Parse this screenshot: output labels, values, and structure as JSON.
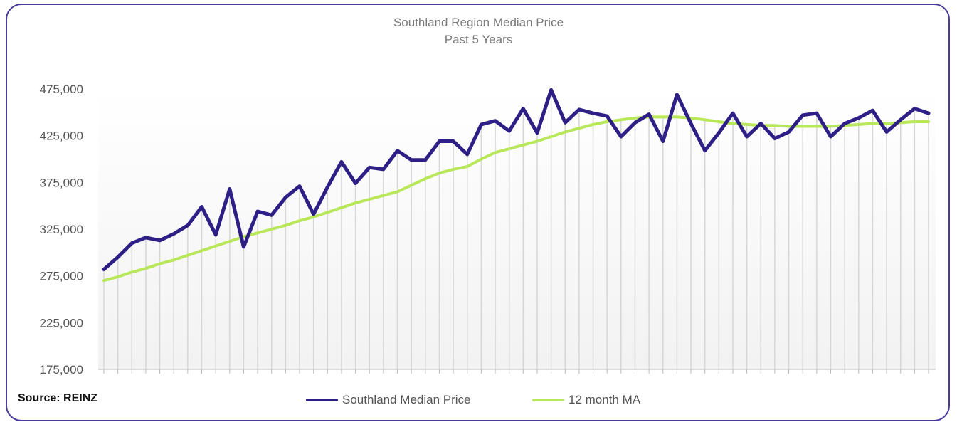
{
  "chart_data": {
    "type": "line",
    "title": "Southland Region Median Price",
    "subtitle": "Past 5 Years",
    "xlabel": "",
    "ylabel": "",
    "ylim": [
      175000,
      475000
    ],
    "yticks": [
      175000,
      225000,
      275000,
      325000,
      375000,
      425000,
      475000
    ],
    "ytick_labels": [
      "175,000",
      "225,000",
      "275,000",
      "325,000",
      "375,000",
      "425,000",
      "475,000"
    ],
    "grid": "vertical drop lines",
    "legend_position": "bottom-center",
    "series": [
      {
        "name": "Southland Median Price",
        "color": "#2e1f86",
        "values": [
          282000,
          295000,
          310000,
          316000,
          313000,
          320000,
          329000,
          349000,
          319000,
          368000,
          306000,
          344000,
          340000,
          359000,
          371000,
          341000,
          370000,
          397000,
          374000,
          391000,
          389000,
          409000,
          399000,
          399000,
          419000,
          419000,
          405000,
          437000,
          441000,
          430000,
          454000,
          428000,
          474000,
          439000,
          453000,
          449000,
          446000,
          424000,
          439000,
          448000,
          419000,
          469000,
          438000,
          409000,
          428000,
          449000,
          424000,
          438000,
          422000,
          429000,
          447000,
          449000,
          424000,
          438000,
          444000,
          452000,
          429000,
          442000,
          454000,
          449000
        ]
      },
      {
        "name": "12 month MA",
        "color": "#b8e85a",
        "values": [
          270000,
          274000,
          279000,
          283000,
          288000,
          292000,
          297000,
          302000,
          307000,
          312000,
          317000,
          321000,
          325000,
          329000,
          334000,
          338000,
          343000,
          348000,
          353000,
          357000,
          361000,
          365000,
          372000,
          379000,
          385000,
          389000,
          392000,
          400000,
          407000,
          411000,
          415000,
          419000,
          424000,
          429000,
          433000,
          437000,
          440000,
          442000,
          444000,
          445000,
          445000,
          445000,
          444000,
          442000,
          440000,
          438000,
          437000,
          436000,
          436000,
          435000,
          435000,
          435000,
          435000,
          436000,
          437000,
          438000,
          438000,
          439000,
          440000,
          440000
        ]
      }
    ]
  },
  "source": "Source: REINZ"
}
